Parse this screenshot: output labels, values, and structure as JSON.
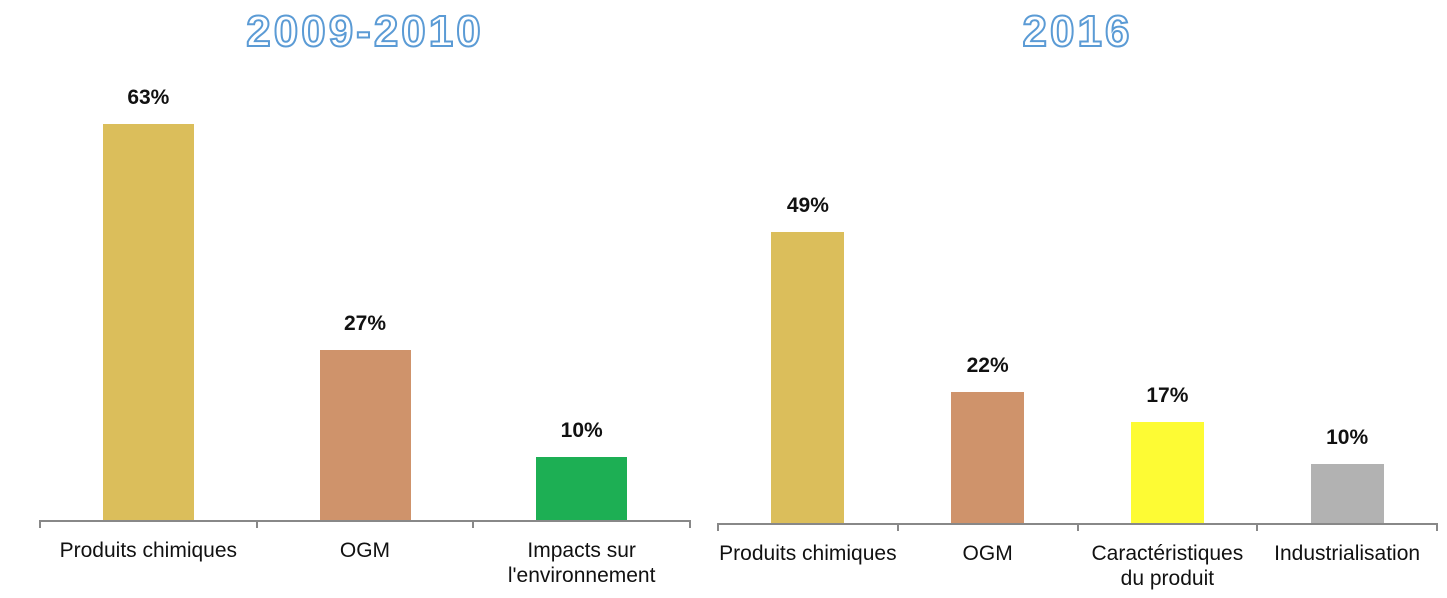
{
  "chart_data": [
    {
      "type": "bar",
      "title": "2009-2010",
      "categories": [
        "Produits chimiques",
        "OGM",
        "Impacts sur l'environnement"
      ],
      "values": [
        63,
        27,
        10
      ],
      "value_labels": [
        "63%",
        "27%",
        "10%"
      ],
      "colors": [
        "#dbbe5b",
        "#cf936b",
        "#1daf54"
      ],
      "ylim": [
        0,
        70
      ]
    },
    {
      "type": "bar",
      "title": "2016",
      "categories": [
        "Produits chimiques",
        "OGM",
        "Caractéristiques du produit",
        "Industrialisation"
      ],
      "values": [
        49,
        22,
        17,
        10
      ],
      "value_labels": [
        "49%",
        "22%",
        "17%",
        "10%"
      ],
      "colors": [
        "#dbbe5b",
        "#cf936b",
        "#fdfb34",
        "#b2b2b2"
      ],
      "ylim": [
        0,
        70
      ]
    }
  ]
}
